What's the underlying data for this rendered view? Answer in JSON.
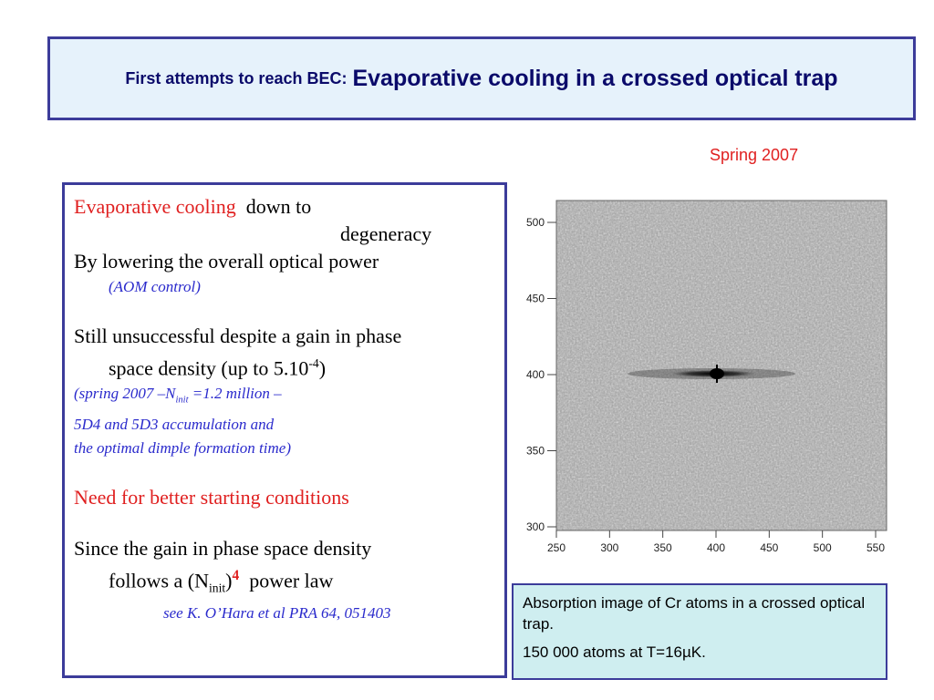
{
  "header": {
    "title_prefix": "First attempts to reach BEC:",
    "title_main": "Evaporative cooling in a crossed optical trap"
  },
  "date_label": "Spring 2007",
  "body": {
    "evap_heading": "Evaporative cooling",
    "evap_rest": "down to",
    "degeneracy": "degeneracy",
    "lowering": "By lowering the overall optical power",
    "aom": "(AOM control)",
    "still1": "Still unsuccessful despite a gain in phase",
    "still2_pre": "space density (up to 5.10",
    "still2_sup": "-4",
    "still2_post": ")",
    "spring_pre": "(spring 2007 –N",
    "spring_sub": "init",
    "spring_post": " =1.2 million –",
    "accum": "5D4 and 5D3 accumulation and",
    "dimple": "the optimal dimple formation time)",
    "need": "Need for better starting conditions",
    "since1": "Since the gain in phase space density",
    "since2_pre": "follows a (N",
    "since2_sub": "init",
    "since2_mid": ")",
    "since2_sup": "4",
    "since2_post": "  power law",
    "ref": "see K. O’Hara et al PRA 64, 051403"
  },
  "plot": {
    "x_ticks": [
      "250",
      "300",
      "350",
      "400",
      "450",
      "500",
      "550"
    ],
    "y_ticks": [
      "500",
      "450",
      "400",
      "350",
      "300"
    ]
  },
  "caption": {
    "line1": "Absorption image of Cr atoms in a crossed optical trap.",
    "line2": "150 000 atoms at T=16µK."
  }
}
